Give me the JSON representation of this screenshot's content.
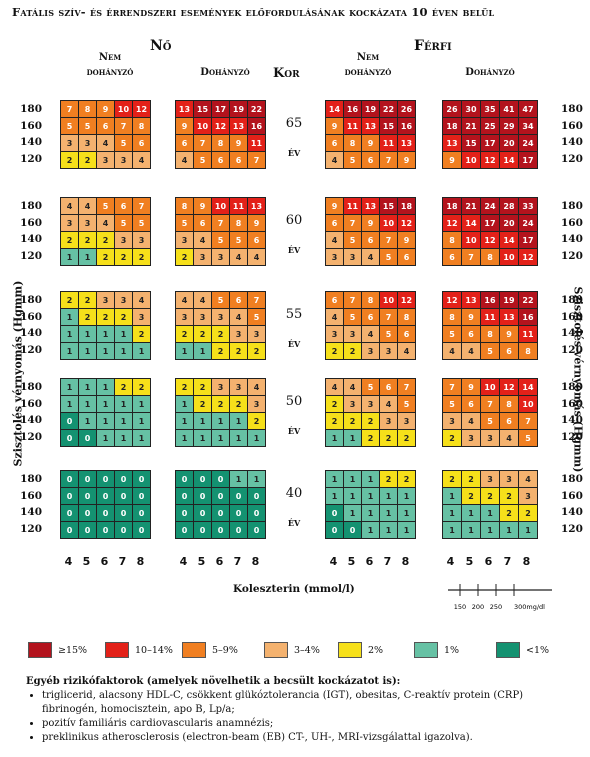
{
  "title": "Fatális szív- és érrendszeri események előfordulásának kockázata 10 éven belül",
  "headers": {
    "female": "Nő",
    "male": "Férfi",
    "nonsmoker_line1": "Nem",
    "nonsmoker_line2": "dohányzó",
    "smoker": "Dohányzó",
    "age": "Kor",
    "year": "év"
  },
  "yaxis_label": "Szisztolés vérnyomás (Hgmm)",
  "xaxis_label": "Koleszterin (mmol/l)",
  "sbp_ticks": [
    "180",
    "160",
    "140",
    "120"
  ],
  "chol_ticks": [
    "4",
    "5",
    "6",
    "7",
    "8"
  ],
  "scale_ticks": [
    "150",
    "200",
    "250",
    "300mg/dl"
  ],
  "colors": {
    "c15": "#b3131d",
    "c10": "#e32119",
    "c5": "#f07f21",
    "c3": "#f4b26f",
    "c2": "#f6e01a",
    "c1": "#66c1a4",
    "c0": "#149271"
  },
  "legend": [
    {
      "label": "≥15%",
      "color": "#b3131d"
    },
    {
      "label": "10–14%",
      "color": "#e32119"
    },
    {
      "label": "5–9%",
      "color": "#f07f21"
    },
    {
      "label": "3–4%",
      "color": "#f4b26f"
    },
    {
      "label": "2%",
      "color": "#f6e01a"
    },
    {
      "label": "1%",
      "color": "#66c1a4"
    },
    {
      "label": "<1%",
      "color": "#149271"
    }
  ],
  "notes": {
    "heading": "Egyéb rizikófaktorok (amelyek növelhetik a becsült kockázatot is):",
    "items": [
      "triglicerid, alacsony HDL-C, csökkent glükóztolerancia (IGT), obesitas, C-reaktív protein (CRP) fibrinogén, homocisztein, apo B, Lp/a;",
      "pozitív familiáris cardiovascularis anamnézis;",
      "preklinikus atherosclerosis (electron-beam (EB) CT-, UH-, MRI-vizsgálattal igazolva)."
    ]
  },
  "chart_data": {
    "type": "heatmap",
    "title": "Fatális szív- és érrendszeri események előfordulásának kockázata 10 éven belül",
    "xlabel": "Koleszterin (mmol/l)",
    "ylabel": "Szisztolés vérnyomás (Hgmm)",
    "x": [
      4,
      5,
      6,
      7,
      8
    ],
    "y": [
      180,
      160,
      140,
      120
    ],
    "ages": [
      "65",
      "60",
      "55",
      "50",
      "40"
    ],
    "panels": [
      {
        "age": "65",
        "group": "female_nonsmoker",
        "values": [
          [
            7,
            8,
            9,
            10,
            12
          ],
          [
            5,
            5,
            6,
            7,
            8
          ],
          [
            3,
            3,
            4,
            5,
            6
          ],
          [
            2,
            2,
            3,
            3,
            4
          ]
        ]
      },
      {
        "age": "65",
        "group": "female_smoker",
        "values": [
          [
            13,
            15,
            17,
            19,
            22
          ],
          [
            9,
            10,
            12,
            13,
            16
          ],
          [
            6,
            7,
            8,
            9,
            11
          ],
          [
            4,
            5,
            6,
            6,
            7
          ]
        ]
      },
      {
        "age": "65",
        "group": "male_nonsmoker",
        "values": [
          [
            14,
            16,
            19,
            22,
            26
          ],
          [
            9,
            11,
            13,
            15,
            16
          ],
          [
            6,
            8,
            9,
            11,
            13
          ],
          [
            4,
            5,
            6,
            7,
            9
          ]
        ]
      },
      {
        "age": "65",
        "group": "male_smoker",
        "values": [
          [
            26,
            30,
            35,
            41,
            47
          ],
          [
            18,
            21,
            25,
            29,
            34
          ],
          [
            13,
            15,
            17,
            20,
            24
          ],
          [
            9,
            10,
            12,
            14,
            17
          ]
        ]
      },
      {
        "age": "60",
        "group": "female_nonsmoker",
        "values": [
          [
            4,
            4,
            5,
            6,
            7
          ],
          [
            3,
            3,
            4,
            5,
            5
          ],
          [
            2,
            2,
            2,
            3,
            3
          ],
          [
            1,
            1,
            2,
            2,
            2
          ]
        ]
      },
      {
        "age": "60",
        "group": "female_smoker",
        "values": [
          [
            8,
            9,
            10,
            11,
            13
          ],
          [
            5,
            6,
            7,
            8,
            9
          ],
          [
            3,
            4,
            5,
            5,
            6
          ],
          [
            2,
            3,
            3,
            4,
            4
          ]
        ]
      },
      {
        "age": "60",
        "group": "male_nonsmoker",
        "values": [
          [
            9,
            11,
            13,
            15,
            18
          ],
          [
            6,
            7,
            9,
            10,
            12
          ],
          [
            4,
            5,
            6,
            7,
            9
          ],
          [
            3,
            3,
            4,
            5,
            6
          ]
        ]
      },
      {
        "age": "60",
        "group": "male_smoker",
        "values": [
          [
            18,
            21,
            24,
            28,
            33
          ],
          [
            12,
            14,
            17,
            20,
            24
          ],
          [
            8,
            10,
            12,
            14,
            17
          ],
          [
            6,
            7,
            8,
            10,
            12
          ]
        ]
      },
      {
        "age": "55",
        "group": "female_nonsmoker",
        "values": [
          [
            2,
            2,
            3,
            3,
            4
          ],
          [
            1,
            2,
            2,
            2,
            3
          ],
          [
            1,
            1,
            1,
            1,
            2
          ],
          [
            1,
            1,
            1,
            1,
            1
          ]
        ]
      },
      {
        "age": "55",
        "group": "female_smoker",
        "values": [
          [
            4,
            4,
            5,
            6,
            7
          ],
          [
            3,
            3,
            3,
            4,
            5
          ],
          [
            2,
            2,
            2,
            3,
            3
          ],
          [
            1,
            1,
            2,
            2,
            2
          ]
        ]
      },
      {
        "age": "55",
        "group": "male_nonsmoker",
        "values": [
          [
            6,
            7,
            8,
            10,
            12
          ],
          [
            4,
            5,
            6,
            7,
            8
          ],
          [
            3,
            3,
            4,
            5,
            6
          ],
          [
            2,
            2,
            3,
            3,
            4
          ]
        ]
      },
      {
        "age": "55",
        "group": "male_smoker",
        "values": [
          [
            12,
            13,
            16,
            19,
            22
          ],
          [
            8,
            9,
            11,
            13,
            16
          ],
          [
            5,
            6,
            8,
            9,
            11
          ],
          [
            4,
            4,
            5,
            6,
            8
          ]
        ]
      },
      {
        "age": "50",
        "group": "female_nonsmoker",
        "values": [
          [
            1,
            1,
            1,
            2,
            2
          ],
          [
            1,
            1,
            1,
            1,
            1
          ],
          [
            0,
            1,
            1,
            1,
            1
          ],
          [
            0,
            0,
            1,
            1,
            1
          ]
        ]
      },
      {
        "age": "50",
        "group": "female_smoker",
        "values": [
          [
            2,
            2,
            3,
            3,
            4
          ],
          [
            1,
            2,
            2,
            2,
            3
          ],
          [
            1,
            1,
            1,
            1,
            2
          ],
          [
            1,
            1,
            1,
            1,
            1
          ]
        ]
      },
      {
        "age": "50",
        "group": "male_nonsmoker",
        "values": [
          [
            4,
            4,
            5,
            6,
            7
          ],
          [
            2,
            3,
            3,
            4,
            5
          ],
          [
            2,
            2,
            2,
            3,
            3
          ],
          [
            1,
            1,
            2,
            2,
            2
          ]
        ]
      },
      {
        "age": "50",
        "group": "male_smoker",
        "values": [
          [
            7,
            9,
            10,
            12,
            14
          ],
          [
            5,
            6,
            7,
            8,
            10
          ],
          [
            3,
            4,
            5,
            6,
            7
          ],
          [
            2,
            3,
            3,
            4,
            5
          ]
        ]
      },
      {
        "age": "40",
        "group": "female_nonsmoker",
        "values": [
          [
            0,
            0,
            0,
            0,
            0
          ],
          [
            0,
            0,
            0,
            0,
            0
          ],
          [
            0,
            0,
            0,
            0,
            0
          ],
          [
            0,
            0,
            0,
            0,
            0
          ]
        ]
      },
      {
        "age": "40",
        "group": "female_smoker",
        "values": [
          [
            0,
            0,
            0,
            1,
            1
          ],
          [
            0,
            0,
            0,
            0,
            0
          ],
          [
            0,
            0,
            0,
            0,
            0
          ],
          [
            0,
            0,
            0,
            0,
            0
          ]
        ]
      },
      {
        "age": "40",
        "group": "male_nonsmoker",
        "values": [
          [
            1,
            1,
            1,
            2,
            2
          ],
          [
            1,
            1,
            1,
            1,
            1
          ],
          [
            0,
            1,
            1,
            1,
            1
          ],
          [
            0,
            0,
            1,
            1,
            1
          ]
        ]
      },
      {
        "age": "40",
        "group": "male_smoker",
        "values": [
          [
            2,
            2,
            3,
            3,
            4
          ],
          [
            1,
            2,
            2,
            2,
            3
          ],
          [
            1,
            1,
            1,
            2,
            2
          ],
          [
            1,
            1,
            1,
            1,
            1
          ]
        ]
      }
    ]
  }
}
